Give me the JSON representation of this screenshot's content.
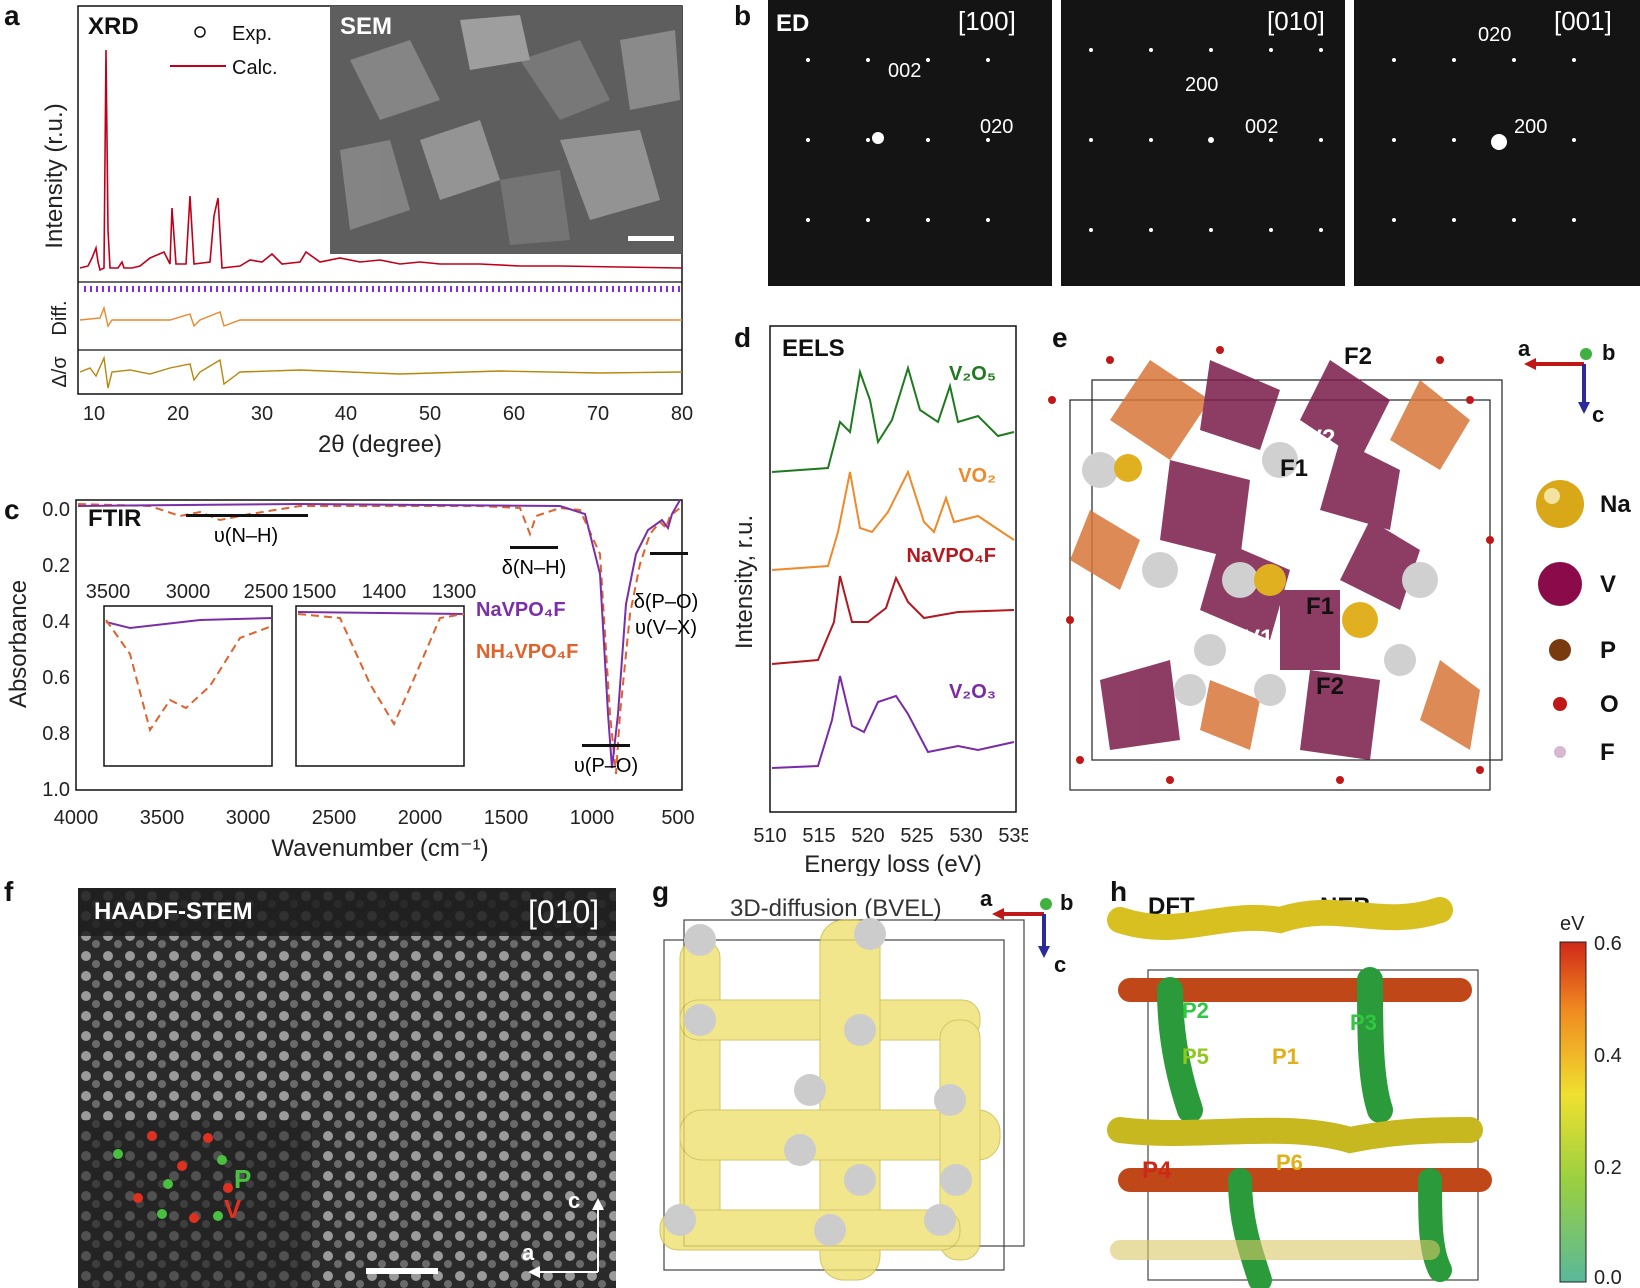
{
  "panels": {
    "a": {
      "letter": "a",
      "xrd": "XRD",
      "sem": "SEM",
      "legend_exp": "Exp.",
      "legend_calc": "Calc.",
      "ylabel": "Intensity (r.u.)",
      "diff_label": "Diff.",
      "resid_label": "Δ/σ",
      "xlabel": "2θ (degree)",
      "xticks": [
        "10",
        "20",
        "30",
        "40",
        "50",
        "60",
        "70",
        "80"
      ]
    },
    "b": {
      "letter": "b",
      "ed": "ED",
      "zones": [
        "[100]",
        "[010]",
        "[001]"
      ],
      "idx1": [
        "002",
        "020"
      ],
      "idx2": [
        "200",
        "002"
      ],
      "idx3": [
        "020",
        "200"
      ]
    },
    "c": {
      "letter": "c",
      "ftir": "FTIR",
      "ylabel": "Absorbance",
      "xlabel": "Wavenumber (cm⁻¹)",
      "yticks": [
        "0.0",
        "0.2",
        "0.4",
        "0.6",
        "0.8",
        "1.0"
      ],
      "xticks": [
        "4000",
        "3500",
        "3000",
        "2500",
        "2000",
        "1500",
        "1000",
        "500"
      ],
      "nh": "υ(N–H)",
      "dnh": "δ(N–H)",
      "po": "υ(P–O)",
      "dpo": "δ(P–O)",
      "vx": "υ(V–X)",
      "inset1_ticks": [
        "3500",
        "3000",
        "2500"
      ],
      "inset2_ticks": [
        "1500",
        "1400",
        "1300"
      ],
      "leg1": "NaVPO₄F",
      "leg2": "NH₄VPO₄F"
    },
    "d": {
      "letter": "d",
      "eels": "EELS",
      "ylabel": "Intensity, r.u.",
      "xlabel": "Energy loss (eV)",
      "xticks": [
        "510",
        "515",
        "520",
        "525",
        "530",
        "535"
      ],
      "spectra": [
        "V₂O₅",
        "VO₂",
        "NaVPO₄F",
        "V₂O₃"
      ]
    },
    "e": {
      "letter": "e",
      "labels": [
        "F2",
        "V2",
        "F1",
        "F1",
        "V1",
        "F2"
      ],
      "axes": {
        "a": "a",
        "b": "b",
        "c": "c"
      },
      "legend": [
        "Na",
        "V",
        "P",
        "O",
        "F"
      ]
    },
    "f": {
      "letter": "f",
      "title": "HAADF-STEM",
      "zone": "[010]",
      "p": "P",
      "v": "V",
      "axc": "c",
      "axa": "a"
    },
    "g": {
      "letter": "g",
      "title": "3D-diffusion (BVEL)",
      "axes": {
        "a": "a",
        "b": "b",
        "c": "c"
      }
    },
    "h": {
      "letter": "h",
      "dft": "DFT",
      "neb": "NEB",
      "paths": [
        "P2",
        "P3",
        "P5",
        "P1",
        "P4",
        "P6"
      ],
      "cbar_unit": "eV",
      "cbar_ticks": [
        "0.6",
        "0.4",
        "0.2",
        "0.0"
      ]
    }
  },
  "colors": {
    "calc": "#c0001a",
    "diff": "#e8892f",
    "resid": "#b8860b",
    "ticks": "#8a2be2",
    "navpo": "#7a2fa8",
    "nh4": "#e0622c",
    "v2o5": "#1f7a1f",
    "vo2": "#ef8a2a",
    "navpo4f": "#b3181f",
    "v2o3": "#7a2aa8"
  }
}
